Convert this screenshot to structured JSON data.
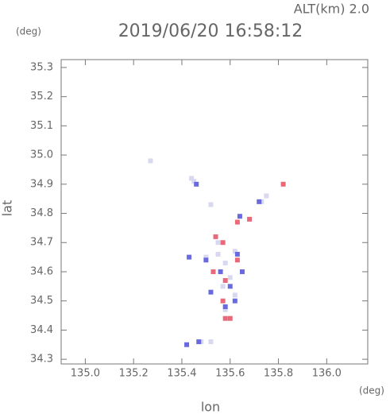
{
  "chart_data": {
    "type": "scatter",
    "title": "2019/06/20 16:58:12",
    "annotation": "ALT(km) 2.0",
    "y_unit": "(deg)",
    "x_unit": "(deg)",
    "xlabel": "lon",
    "ylabel": "lat",
    "xlim": [
      134.9,
      136.17
    ],
    "ylim": [
      34.284,
      35.327
    ],
    "xticks": [
      {
        "value": 135.0,
        "label": "135.0"
      },
      135.2,
      135.4,
      135.6,
      135.8,
      {
        "value": 136.0,
        "label": "136.0"
      }
    ],
    "yticks": [
      34.3,
      34.4,
      34.5,
      34.6,
      34.7,
      34.8,
      34.9,
      {
        "value": 35.0,
        "label": "35.0"
      },
      35.1,
      35.2,
      35.3
    ],
    "series": [
      {
        "color": "#d8d8f0",
        "x": [
          135.27,
          135.45,
          135.44,
          135.75,
          135.73,
          135.52,
          135.5,
          135.55,
          135.62,
          135.58,
          135.6,
          135.57,
          135.62,
          135.48,
          135.52,
          135.58,
          135.55
        ],
        "values": [
          34.98,
          34.91,
          34.92,
          34.86,
          34.84,
          34.83,
          34.65,
          34.66,
          34.67,
          34.63,
          34.58,
          34.55,
          34.52,
          34.36,
          34.36,
          34.47,
          34.7
        ]
      },
      {
        "color": "#6a6ae0",
        "x": [
          135.46,
          135.72,
          135.43,
          135.5,
          135.63,
          135.56,
          135.6,
          135.62,
          135.58,
          135.42,
          135.47,
          135.52,
          135.65,
          135.64
        ],
        "values": [
          34.9,
          34.84,
          34.65,
          34.64,
          34.66,
          34.6,
          34.55,
          34.5,
          34.48,
          34.35,
          34.36,
          34.53,
          34.6,
          34.79
        ]
      },
      {
        "color": "#e86a7a",
        "x": [
          135.82,
          135.63,
          135.57,
          135.54,
          135.63,
          135.53,
          135.58,
          135.6,
          135.58,
          135.68,
          135.57
        ],
        "values": [
          34.9,
          34.77,
          34.7,
          34.72,
          34.64,
          34.6,
          34.57,
          34.44,
          34.44,
          34.78,
          34.5
        ]
      }
    ]
  }
}
